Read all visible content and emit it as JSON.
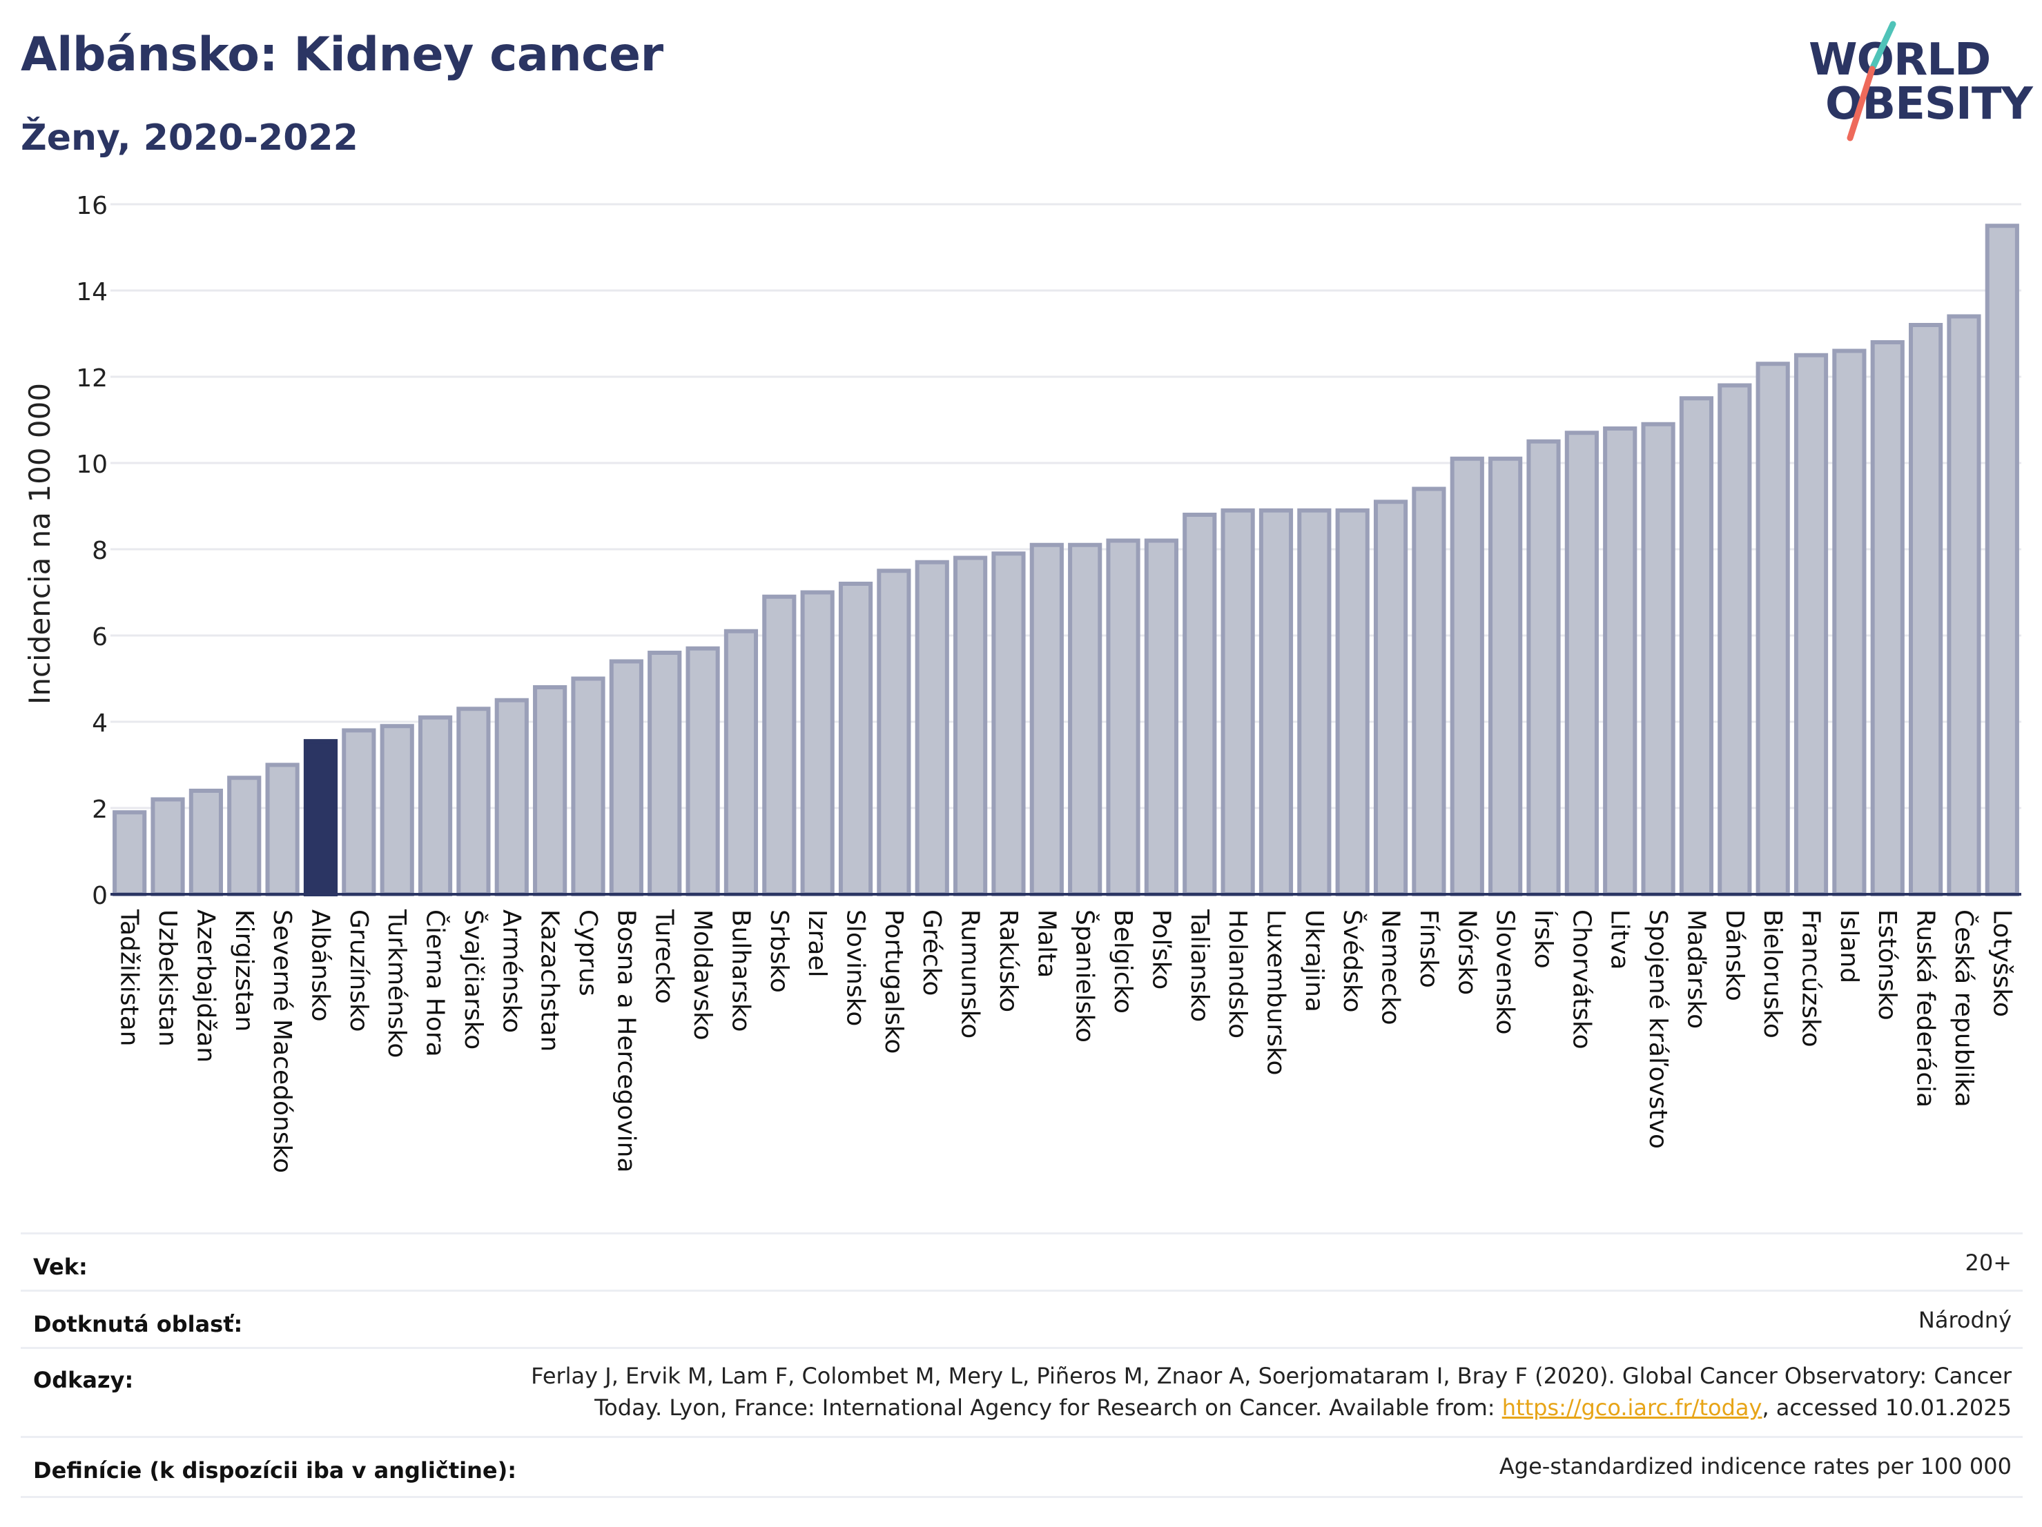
{
  "header": {
    "title": "Albánsko: Kidney cancer",
    "subtitle": "Ženy, 2020-2022"
  },
  "logo": {
    "line1": "WORLD",
    "line2": "OBESITY"
  },
  "colors": {
    "highlight": "#2b3563",
    "bar_fill": "#bec2cf",
    "bar_stroke": "#9a9fb8",
    "grid": "#e8e9ee",
    "title": "#2b3563",
    "logo_slash_top": "#4fc3b8",
    "logo_slash_bottom": "#ee6a5b",
    "link": "#e7a417"
  },
  "chart_data": {
    "type": "bar",
    "ylabel": "Incidencia na 100 000",
    "ylim": [
      0,
      16
    ],
    "yticks": [
      0,
      2,
      4,
      6,
      8,
      10,
      12,
      14,
      16
    ],
    "grid": true,
    "highlight_category": "Albánsko",
    "categories": [
      "Tadžikistan",
      "Uzbekistan",
      "Azerbajdžan",
      "Kirgizstan",
      "Severné Macedónsko",
      "Albánsko",
      "Gruzínsko",
      "Turkménsko",
      "Čierna Hora",
      "Švajčiarsko",
      "Arménsko",
      "Kazachstan",
      "Cyprus",
      "Bosna a Hercegovina",
      "Turecko",
      "Moldavsko",
      "Bulharsko",
      "Srbsko",
      "Izrael",
      "Slovinsko",
      "Portugalsko",
      "Grécko",
      "Rumunsko",
      "Rakúsko",
      "Malta",
      "Španielsko",
      "Belgicko",
      "Poľsko",
      "Taliansko",
      "Holandsko",
      "Luxembursko",
      "Ukrajina",
      "Švédsko",
      "Nemecko",
      "Fínsko",
      "Nórsko",
      "Slovensko",
      "Írsko",
      "Chorvátsko",
      "Litva",
      "Spojené kráľovstvo",
      "Maďarsko",
      "Dánsko",
      "Bielorusko",
      "Francúzsko",
      "Island",
      "Estónsko",
      "Ruská federácia",
      "Česká republika",
      "Lotyšsko"
    ],
    "values": [
      1.9,
      2.2,
      2.4,
      2.7,
      3.0,
      3.55,
      3.8,
      3.9,
      4.1,
      4.3,
      4.5,
      4.8,
      5.0,
      5.4,
      5.6,
      5.7,
      6.1,
      6.9,
      7.0,
      7.2,
      7.5,
      7.7,
      7.8,
      7.9,
      8.1,
      8.1,
      8.2,
      8.2,
      8.8,
      8.9,
      8.9,
      8.9,
      8.9,
      9.1,
      9.4,
      10.1,
      10.1,
      10.5,
      10.7,
      10.8,
      10.9,
      11.5,
      11.8,
      12.3,
      12.5,
      12.6,
      12.8,
      13.2,
      13.4,
      15.5
    ]
  },
  "info": [
    {
      "label": "Vek:",
      "value": "20+"
    },
    {
      "label": "Dotknutá oblasť:",
      "value": "Národný"
    },
    {
      "label": "Odkazy:",
      "value_line1": "Ferlay J, Ervik M, Lam F, Colombet M, Mery L, Piñeros M, Znaor A, Soerjomataram I, Bray F (2020). Global Cancer Observatory: Cancer",
      "value_line2_pre": "Today. Lyon, France: International Agency for Research on Cancer. Available from: ",
      "link": "https://gco.iarc.fr/today",
      "value_line2_post": ", accessed 10.01.2025"
    },
    {
      "label": "Definície (k dispozícii iba v angličtine):",
      "value": "Age-standardized indicence rates per 100 000"
    }
  ]
}
